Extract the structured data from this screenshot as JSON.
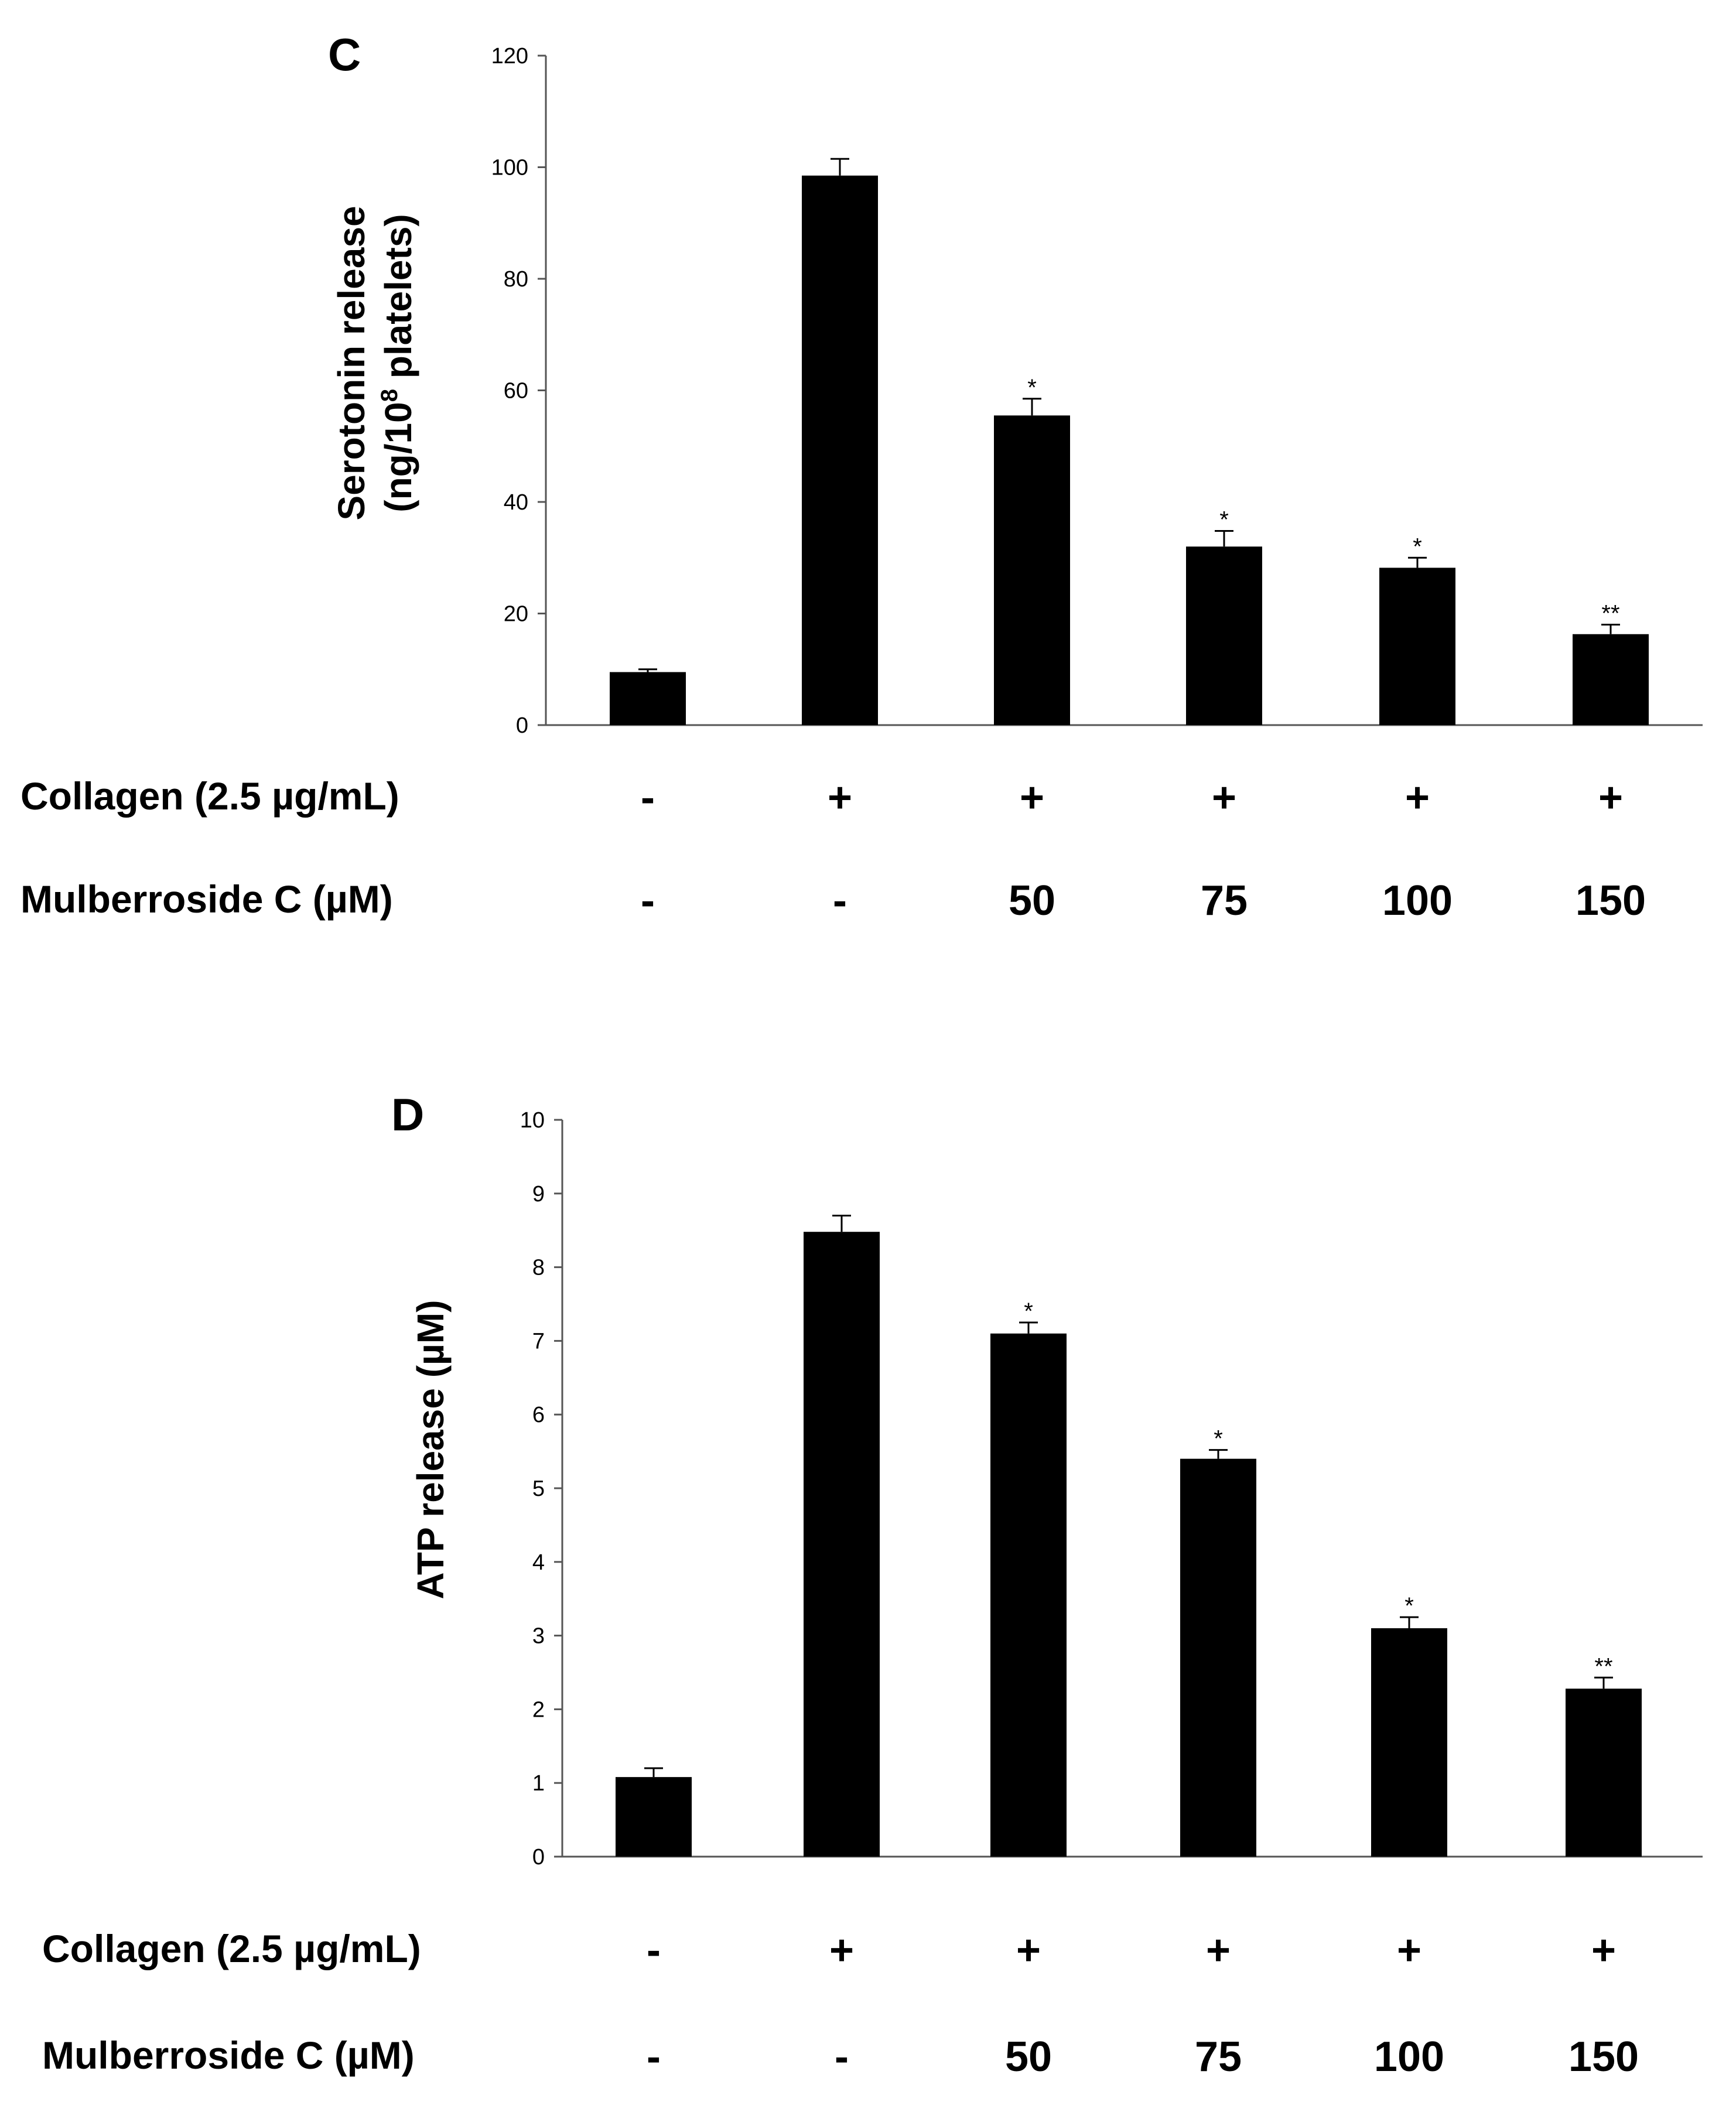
{
  "chart_data": [
    {
      "panel": "C",
      "type": "bar",
      "ylabel_line1": "Serotonin release",
      "ylabel_line2_prefix": "(ng/10",
      "ylabel_line2_sup": "8",
      "ylabel_line2_suffix": " platelets)",
      "ylim": [
        0,
        120
      ],
      "yticks": [
        0,
        20,
        40,
        60,
        80,
        100,
        120
      ],
      "values": [
        9.5,
        98.5,
        55.5,
        32,
        28.2,
        16.3
      ],
      "errors": [
        0.5,
        3.0,
        3.0,
        2.8,
        1.8,
        1.7
      ],
      "significance": [
        "",
        "",
        "*",
        "*",
        "*",
        "**"
      ],
      "bar_color": "#000000",
      "rows": [
        {
          "label": "Collagen (2.5 µg/mL)",
          "values": [
            "-",
            "+",
            "+",
            "+",
            "+",
            "+"
          ]
        },
        {
          "label": "Mulberroside C (µM)",
          "values": [
            "-",
            "-",
            "50",
            "75",
            "100",
            "150"
          ]
        }
      ]
    },
    {
      "panel": "D",
      "type": "bar",
      "ylabel_line1": "ATP release (µM)",
      "ylim": [
        0,
        10
      ],
      "yticks": [
        0,
        1,
        2,
        3,
        4,
        5,
        6,
        7,
        8,
        9,
        10
      ],
      "values": [
        1.08,
        8.48,
        7.1,
        5.4,
        3.1,
        2.28
      ],
      "errors": [
        0.12,
        0.22,
        0.15,
        0.12,
        0.15,
        0.15
      ],
      "significance": [
        "",
        "",
        "*",
        "*",
        "*",
        "**"
      ],
      "bar_color": "#000000",
      "rows": [
        {
          "label": "Collagen (2.5 µg/mL)",
          "values": [
            "-",
            "+",
            "+",
            "+",
            "+",
            "+"
          ]
        },
        {
          "label": "Mulberroside C (µM)",
          "values": [
            "-",
            "-",
            "50",
            "75",
            "100",
            "150"
          ]
        }
      ]
    }
  ]
}
